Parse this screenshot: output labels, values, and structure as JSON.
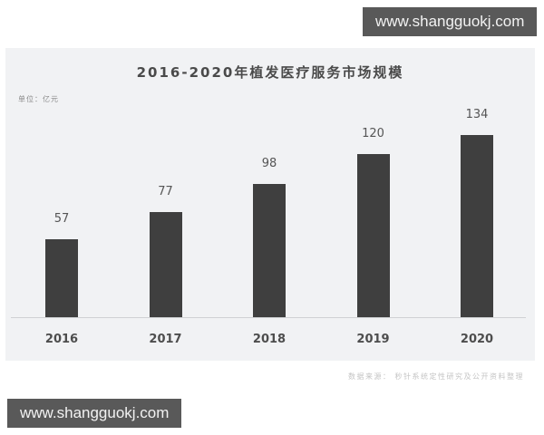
{
  "watermark": {
    "text": "www.shangguokj.com"
  },
  "chart": {
    "title": "2016-2020年植发医疗服务市场规模",
    "unit": "单位：亿元",
    "source": "数据来源：  秒针系统定性研究及公开资料整理",
    "colors": {
      "bar": "#3f3f3f",
      "panel": "#f1f2f4",
      "axis": "#cfd1d4",
      "watermark_bg": "#595959"
    }
  },
  "chart_data": {
    "type": "bar",
    "title": "2016-2020年植发医疗服务市场规模",
    "subtitle": "单位：亿元",
    "categories": [
      "2016",
      "2017",
      "2018",
      "2019",
      "2020"
    ],
    "values": [
      57,
      77,
      98,
      120,
      134
    ],
    "xlabel": "",
    "ylabel": "亿元",
    "ylim": [
      0,
      140
    ],
    "grid": false,
    "legend": null,
    "data_labels": true,
    "annotations": [
      "数据来源：秒针系统定性研究及公开资料整理"
    ]
  }
}
